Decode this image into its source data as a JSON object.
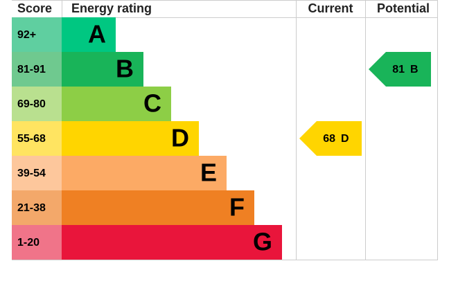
{
  "header": {
    "score": "Score",
    "rating": "Energy rating",
    "current": "Current",
    "potential": "Potential"
  },
  "bands": [
    {
      "range": "92+",
      "letter": "A",
      "color": "#00c781",
      "light": "#5fcfa0"
    },
    {
      "range": "81-91",
      "letter": "B",
      "color": "#19b459",
      "light": "#6fc98f"
    },
    {
      "range": "69-80",
      "letter": "C",
      "color": "#8dce46",
      "light": "#b9e08f"
    },
    {
      "range": "55-68",
      "letter": "D",
      "color": "#ffd500",
      "light": "#ffe461"
    },
    {
      "range": "39-54",
      "letter": "E",
      "color": "#fcaa65",
      "light": "#fdc79c"
    },
    {
      "range": "21-38",
      "letter": "F",
      "color": "#ef8023",
      "light": "#f3a86a"
    },
    {
      "range": "1-20",
      "letter": "G",
      "color": "#e9153b",
      "light": "#f07489"
    }
  ],
  "current": {
    "score": 68,
    "band": "D"
  },
  "potential": {
    "score": 81,
    "band": "B"
  }
}
